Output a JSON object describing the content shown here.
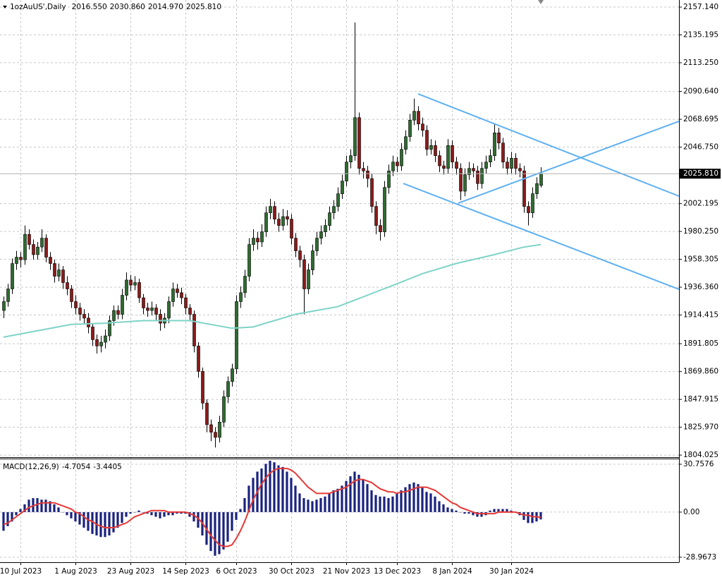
{
  "chart_data": [
    {
      "type": "candlestick",
      "title": "1ozAuUS',Daily",
      "last_values": [
        {
          "value": 2016.55,
          "label": "2016.550"
        },
        {
          "value": 2030.86,
          "label": "2030.860"
        },
        {
          "value": 2014.97,
          "label": "2014.970"
        },
        {
          "value": 2025.81,
          "label": "2025.810"
        }
      ],
      "bull_color": "#2e6b30",
      "bear_color": "#8b1a1a",
      "candles": [
        [
          1918,
          1929,
          1912,
          1925
        ],
        [
          1925,
          1939,
          1921,
          1935
        ],
        [
          1935,
          1959,
          1931,
          1955
        ],
        [
          1955,
          1965,
          1950,
          1960
        ],
        [
          1960,
          1964,
          1952,
          1958
        ],
        [
          1958,
          1985,
          1954,
          1978
        ],
        [
          1978,
          1982,
          1966,
          1970
        ],
        [
          1970,
          1974,
          1958,
          1962
        ],
        [
          1962,
          1972,
          1958,
          1968
        ],
        [
          1968,
          1982,
          1964,
          1975
        ],
        [
          1975,
          1978,
          1956,
          1960
        ],
        [
          1960,
          1964,
          1950,
          1955
        ],
        [
          1955,
          1958,
          1940,
          1945
        ],
        [
          1945,
          1955,
          1941,
          1950
        ],
        [
          1950,
          1953,
          1935,
          1940
        ],
        [
          1940,
          1945,
          1930,
          1935
        ],
        [
          1935,
          1938,
          1920,
          1925
        ],
        [
          1925,
          1930,
          1915,
          1920
        ],
        [
          1920,
          1924,
          1910,
          1915
        ],
        [
          1915,
          1919,
          1907,
          1912
        ],
        [
          1912,
          1916,
          1900,
          1905
        ],
        [
          1905,
          1908,
          1890,
          1895
        ],
        [
          1895,
          1899,
          1884,
          1890
        ],
        [
          1890,
          1898,
          1885,
          1893
        ],
        [
          1893,
          1903,
          1888,
          1898
        ],
        [
          1898,
          1914,
          1894,
          1910
        ],
        [
          1910,
          1922,
          1906,
          1918
        ],
        [
          1918,
          1922,
          1911,
          1915
        ],
        [
          1915,
          1935,
          1911,
          1930
        ],
        [
          1930,
          1948,
          1926,
          1942
        ],
        [
          1942,
          1946,
          1933,
          1938
        ],
        [
          1938,
          1945,
          1934,
          1940
        ],
        [
          1940,
          1943,
          1924,
          1928
        ],
        [
          1928,
          1931,
          1915,
          1920
        ],
        [
          1920,
          1924,
          1913,
          1918
        ],
        [
          1918,
          1925,
          1914,
          1920
        ],
        [
          1920,
          1923,
          1910,
          1915
        ],
        [
          1915,
          1919,
          1902,
          1908
        ],
        [
          1908,
          1916,
          1904,
          1912
        ],
        [
          1912,
          1929,
          1908,
          1925
        ],
        [
          1925,
          1940,
          1921,
          1935
        ],
        [
          1935,
          1939,
          1928,
          1932
        ],
        [
          1932,
          1936,
          1923,
          1928
        ],
        [
          1928,
          1931,
          1915,
          1920
        ],
        [
          1920,
          1923,
          1910,
          1915
        ],
        [
          1915,
          1918,
          1885,
          1890
        ],
        [
          1890,
          1893,
          1865,
          1870
        ],
        [
          1870,
          1873,
          1840,
          1845
        ],
        [
          1845,
          1848,
          1822,
          1828
        ],
        [
          1828,
          1832,
          1815,
          1822
        ],
        [
          1822,
          1826,
          1810,
          1818
        ],
        [
          1818,
          1835,
          1814,
          1830
        ],
        [
          1830,
          1855,
          1826,
          1850
        ],
        [
          1850,
          1866,
          1845,
          1862
        ],
        [
          1862,
          1876,
          1858,
          1872
        ],
        [
          1872,
          1930,
          1868,
          1925
        ],
        [
          1925,
          1937,
          1920,
          1932
        ],
        [
          1932,
          1950,
          1928,
          1945
        ],
        [
          1945,
          1975,
          1941,
          1970
        ],
        [
          1970,
          1982,
          1965,
          1975
        ],
        [
          1975,
          1980,
          1966,
          1972
        ],
        [
          1972,
          1986,
          1968,
          1980
        ],
        [
          1980,
          2000,
          1976,
          1995
        ],
        [
          1995,
          2006,
          1990,
          2000
        ],
        [
          2000,
          2004,
          1986,
          1990
        ],
        [
          1990,
          1995,
          1980,
          1985
        ],
        [
          1985,
          1998,
          1981,
          1992
        ],
        [
          1992,
          1997,
          1985,
          1990
        ],
        [
          1990,
          1994,
          1970,
          1975
        ],
        [
          1975,
          1979,
          1960,
          1965
        ],
        [
          1965,
          1969,
          1952,
          1958
        ],
        [
          1958,
          1962,
          1915,
          1935
        ],
        [
          1935,
          1955,
          1931,
          1950
        ],
        [
          1950,
          1970,
          1946,
          1965
        ],
        [
          1965,
          1980,
          1961,
          1975
        ],
        [
          1975,
          1985,
          1970,
          1980
        ],
        [
          1980,
          1990,
          1976,
          1985
        ],
        [
          1985,
          2000,
          1981,
          1995
        ],
        [
          1995,
          2005,
          1990,
          2000
        ],
        [
          2000,
          2015,
          1996,
          2010
        ],
        [
          2010,
          2025,
          2006,
          2020
        ],
        [
          2020,
          2040,
          2016,
          2035
        ],
        [
          2035,
          2045,
          2030,
          2040
        ],
        [
          2040,
          2145,
          2036,
          2070
        ],
        [
          2070,
          2074,
          2025,
          2030
        ],
        [
          2030,
          2035,
          2022,
          2028
        ],
        [
          2028,
          2032,
          2015,
          2022
        ],
        [
          2022,
          2026,
          1995,
          2000
        ],
        [
          2000,
          2004,
          1978,
          1985
        ],
        [
          1985,
          1990,
          1973,
          1980
        ],
        [
          1980,
          2020,
          1976,
          2015
        ],
        [
          2015,
          2033,
          2010,
          2028
        ],
        [
          2028,
          2040,
          2024,
          2035
        ],
        [
          2035,
          2039,
          2027,
          2032
        ],
        [
          2032,
          2050,
          2028,
          2045
        ],
        [
          2045,
          2060,
          2041,
          2055
        ],
        [
          2055,
          2073,
          2051,
          2068
        ],
        [
          2068,
          2085,
          2064,
          2075
        ],
        [
          2075,
          2079,
          2060,
          2065
        ],
        [
          2065,
          2070,
          2055,
          2060
        ],
        [
          2060,
          2064,
          2040,
          2045
        ],
        [
          2045,
          2053,
          2041,
          2048
        ],
        [
          2048,
          2052,
          2035,
          2040
        ],
        [
          2040,
          2044,
          2027,
          2032
        ],
        [
          2032,
          2036,
          2025,
          2030
        ],
        [
          2030,
          2053,
          2026,
          2048
        ],
        [
          2048,
          2052,
          2030,
          2035
        ],
        [
          2035,
          2039,
          2025,
          2030
        ],
        [
          2030,
          2034,
          2005,
          2012
        ],
        [
          2012,
          2030,
          2008,
          2025
        ],
        [
          2025,
          2035,
          2021,
          2030
        ],
        [
          2030,
          2034,
          2023,
          2028
        ],
        [
          2028,
          2032,
          2013,
          2018
        ],
        [
          2018,
          2035,
          2014,
          2030
        ],
        [
          2030,
          2040,
          2026,
          2035
        ],
        [
          2035,
          2045,
          2031,
          2040
        ],
        [
          2040,
          2065,
          2036,
          2058
        ],
        [
          2058,
          2062,
          2045,
          2050
        ],
        [
          2050,
          2054,
          2030,
          2035
        ],
        [
          2035,
          2039,
          2025,
          2030
        ],
        [
          2030,
          2043,
          2026,
          2038
        ],
        [
          2038,
          2042,
          2025,
          2030
        ],
        [
          2030,
          2034,
          2023,
          2028
        ],
        [
          2028,
          2032,
          1995,
          2000
        ],
        [
          2000,
          2004,
          1985,
          1995
        ],
        [
          1995,
          2015,
          1991,
          2010
        ],
        [
          2010,
          2023,
          2006,
          2018
        ],
        [
          2016.55,
          2030.86,
          2014.97,
          2025.81
        ]
      ],
      "ma": {
        "color": "#7fd3c8",
        "x": [
          0,
          16,
          24,
          33,
          44,
          54,
          59,
          69,
          79,
          86,
          93,
          99,
          107,
          116,
          123,
          127
        ],
        "values": [
          1897,
          1907,
          1908,
          1910,
          1910,
          1904,
          1905,
          1915,
          1921,
          1930,
          1939,
          1947,
          1955,
          1962,
          1968,
          1970
        ]
      },
      "trendlines": {
        "color": "#5fb0f0",
        "lines": [
          {
            "x": [
              98,
              159.67
            ],
            "values": [
              2088.7,
              2008.1
            ]
          },
          {
            "x": [
              94.5,
              159.67
            ],
            "values": [
              2018.1,
              1934.7
            ]
          },
          {
            "x": [
              107.5,
              159.67
            ],
            "values": [
              2002.6,
              2067.1
            ]
          }
        ]
      },
      "xlim": [
        -0.83,
        159.67
      ],
      "ylim": [
        1802.4,
        2162.7
      ],
      "yticks": [
        {
          "value": 2157.14,
          "label": "2157.140"
        },
        2135.195,
        {
          "value": 2113.25,
          "label": "2113.250"
        },
        {
          "value": 2090.64,
          "label": "2090.640"
        },
        2068.695,
        {
          "value": 2046.75,
          "label": "2046.750"
        },
        2002.195,
        {
          "value": 1980.25,
          "label": "1980.250"
        },
        1958.305,
        {
          "value": 1936.36,
          "label": "1936.360"
        },
        1914.415,
        1891.805,
        {
          "value": 1869.86,
          "label": "1869.860"
        },
        1847.915,
        {
          "value": 1825.97,
          "label": "1825.970"
        },
        1804.025
      ],
      "grid": true
    },
    {
      "type": "macd",
      "title": "MACD(12,26,9)",
      "series": [
        {
          "color": "#1a237e",
          "values": [
            -12,
            -9,
            -6,
            -2,
            2,
            5,
            8,
            9,
            9,
            8,
            8,
            7,
            5,
            3,
            0,
            -2,
            -4,
            -6,
            -8,
            -10,
            -12,
            -14,
            -15,
            -16,
            -16,
            -15,
            -13,
            -10,
            -7,
            -3,
            -1,
            0,
            1,
            0,
            -1,
            -2,
            -3,
            -4,
            -3,
            -2,
            -2,
            -1,
            -1,
            -1,
            -3,
            -6,
            -10,
            -15,
            -21,
            -25,
            -28,
            -27,
            -24,
            -19,
            -12,
            -5,
            2,
            9,
            17,
            22,
            26,
            28,
            31,
            33,
            32,
            30,
            29,
            26,
            22,
            17,
            12,
            9,
            8,
            7,
            8,
            9,
            10,
            12,
            14,
            15,
            17,
            20,
            23,
            26,
            24,
            21,
            18,
            14,
            11,
            10,
            10,
            9,
            10,
            12,
            14,
            16,
            18,
            19,
            18,
            16,
            13,
            12,
            10,
            7,
            5,
            3,
            2,
            1,
            0,
            -1,
            -1,
            -2,
            -3,
            -3,
            -2,
            1,
            2,
            2,
            2,
            2,
            1,
            0,
            -2,
            -5,
            -7,
            -7,
            -6,
            -4.7054
          ]
        },
        {
          "color": "#e53935",
          "values": [
            -8,
            -7,
            -5,
            -3,
            -1,
            1,
            3,
            4,
            5,
            6,
            6,
            6,
            6,
            5,
            4,
            3,
            2,
            0,
            -1,
            -3,
            -5,
            -6,
            -8,
            -9,
            -10,
            -10,
            -10,
            -9,
            -8,
            -7,
            -5,
            -3,
            -2,
            -1,
            0,
            1,
            1,
            1,
            1,
            0,
            0,
            0,
            0,
            0,
            -1,
            -2,
            -4,
            -7,
            -11,
            -15,
            -18,
            -21,
            -22,
            -22,
            -21,
            -17,
            -12,
            -6,
            1,
            8,
            13,
            18,
            22,
            25,
            27,
            28,
            28,
            28,
            27,
            25,
            22,
            19,
            16,
            14,
            12,
            12,
            12,
            12,
            13,
            14,
            15,
            16,
            18,
            20,
            21,
            21,
            20,
            19,
            17,
            15,
            14,
            13,
            13,
            12,
            13,
            13,
            14,
            15,
            16,
            16,
            16,
            15,
            14,
            12,
            10,
            8,
            6,
            5,
            3,
            2,
            1,
            0,
            -1,
            -1,
            -1,
            -1,
            -1,
            0,
            0,
            0,
            0,
            0,
            -1,
            -2,
            -2,
            -3,
            -3,
            -3.4405
          ]
        }
      ],
      "xlim": [
        -0.83,
        159.67
      ],
      "ylim": [
        -32.2,
        34.4
      ],
      "yticks": [
        30.7576,
        {
          "value": 0,
          "label": "0.00"
        },
        -28.9673
      ],
      "xticks": [
        {
          "value": 4,
          "label": "10 Jul 2023"
        },
        {
          "value": 17,
          "label": "1 Aug 2023"
        },
        {
          "value": 30,
          "label": "23 Aug 2023"
        },
        {
          "value": 43,
          "label": "14 Sep 2023"
        },
        {
          "value": 55,
          "label": "6 Oct 2023"
        },
        {
          "value": 68,
          "label": "30 Oct 2023"
        },
        {
          "value": 81,
          "label": "21 Nov 2023"
        },
        {
          "value": 93,
          "label": "13 Dec 2023"
        },
        {
          "value": 106,
          "label": "8 Jan 2024"
        },
        {
          "value": 120,
          "label": "30 Jan 2024"
        }
      ],
      "grid": true
    }
  ]
}
